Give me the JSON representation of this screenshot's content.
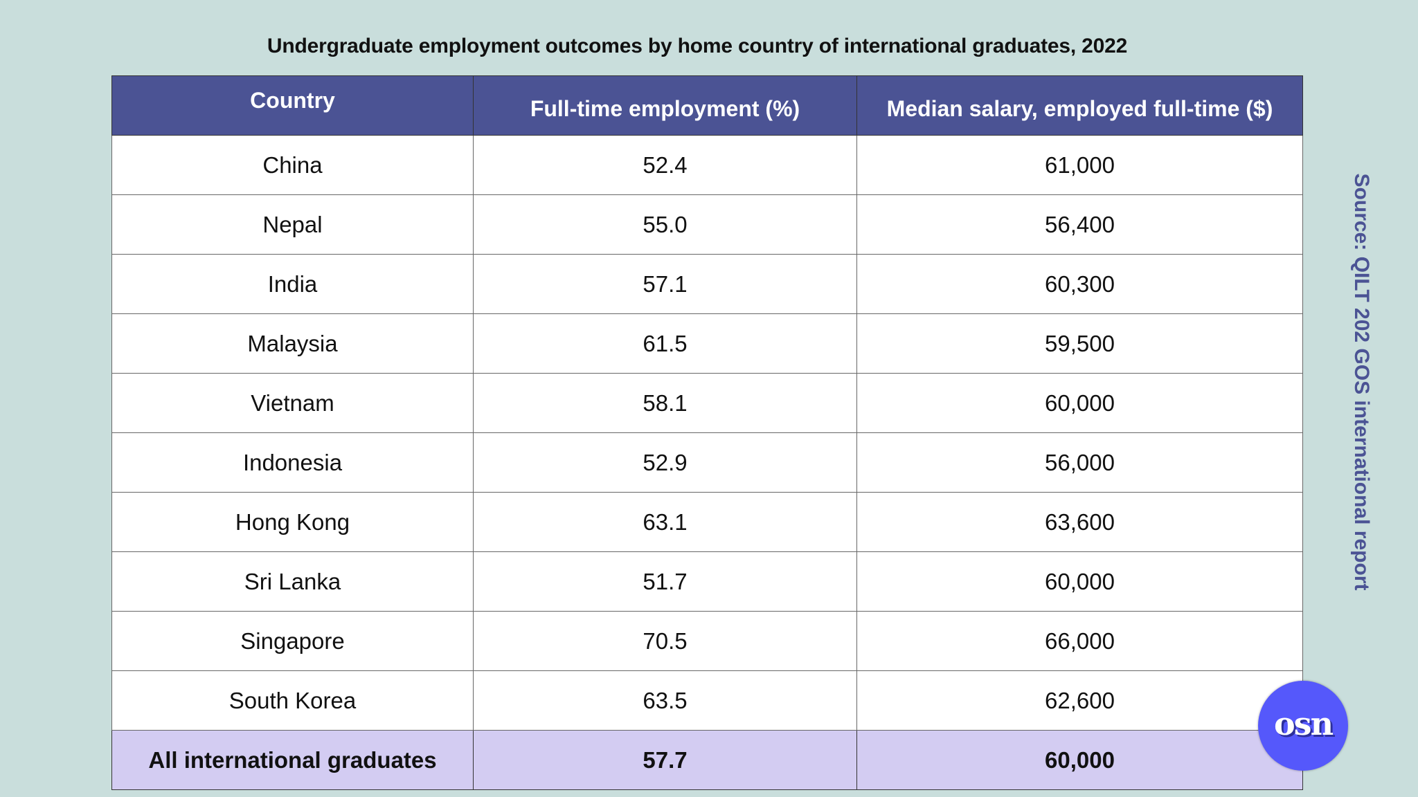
{
  "title": "Undergraduate employment outcomes by home country of international graduates, 2022",
  "table": {
    "headers": [
      "Country",
      "Full-time employment (%)",
      "Median salary, employed full-time ($)"
    ],
    "rows": [
      {
        "country": "China",
        "employment": "52.4",
        "salary": "61,000"
      },
      {
        "country": "Nepal",
        "employment": "55.0",
        "salary": "56,400"
      },
      {
        "country": "India",
        "employment": "57.1",
        "salary": "60,300"
      },
      {
        "country": "Malaysia",
        "employment": "61.5",
        "salary": "59,500"
      },
      {
        "country": "Vietnam",
        "employment": "58.1",
        "salary": "60,000"
      },
      {
        "country": "Indonesia",
        "employment": "52.9",
        "salary": "56,000"
      },
      {
        "country": "Hong Kong",
        "employment": "63.1",
        "salary": "63,600"
      },
      {
        "country": "Sri Lanka",
        "employment": "51.7",
        "salary": "60,000"
      },
      {
        "country": "Singapore",
        "employment": "70.5",
        "salary": "66,000"
      },
      {
        "country": "South Korea",
        "employment": "63.5",
        "salary": "62,600"
      }
    ],
    "total": {
      "country": "All international graduates",
      "employment": "57.7",
      "salary": "60,000"
    }
  },
  "source": "Source: QILT 202 GOS international report",
  "logo": {
    "text": "osn",
    "icon": "osn-logo-icon"
  },
  "colors": {
    "background": "#c9dedc",
    "header": "#4b5394",
    "total_row": "#d3ccf2",
    "source_text": "#4b5394",
    "logo": "#5558fb"
  }
}
